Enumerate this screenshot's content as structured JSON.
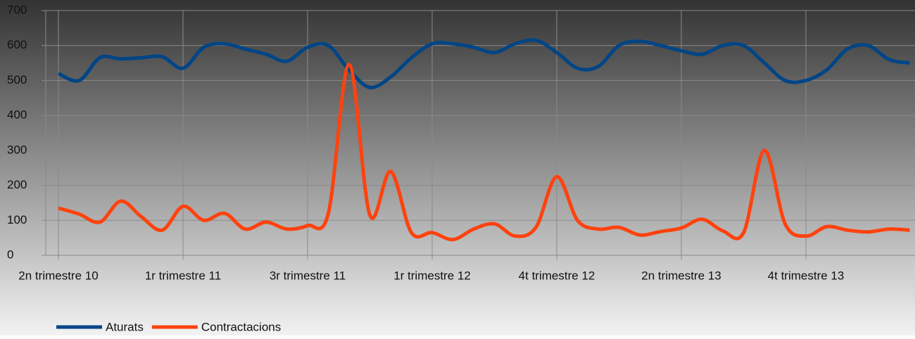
{
  "chart_data": {
    "type": "line",
    "categories": [
      "2n trimestre 10",
      null,
      null,
      null,
      null,
      null,
      "1r trimestre 11",
      null,
      null,
      null,
      null,
      null,
      "3r trimestre 11",
      null,
      null,
      null,
      null,
      null,
      "1r trimestre 12",
      null,
      null,
      null,
      null,
      null,
      "4t trimestre 12",
      null,
      null,
      null,
      null,
      null,
      "2n trimestre 13",
      null,
      null,
      null,
      null,
      null,
      "4t trimestre 13",
      null,
      null,
      null,
      null,
      null
    ],
    "series": [
      {
        "name": "Aturats",
        "color": "#004586",
        "values": [
          520,
          500,
          565,
          562,
          565,
          568,
          535,
          595,
          605,
          590,
          575,
          555,
          595,
          600,
          530,
          480,
          510,
          565,
          605,
          605,
          595,
          580,
          605,
          615,
          580,
          535,
          540,
          600,
          612,
          600,
          585,
          575,
          600,
          600,
          550,
          500,
          500,
          530,
          590,
          600,
          560,
          550
        ]
      },
      {
        "name": "Contractacions",
        "color": "#ff420e",
        "values": [
          135,
          118,
          95,
          155,
          110,
          72,
          140,
          100,
          120,
          75,
          95,
          75,
          85,
          120,
          545,
          115,
          240,
          65,
          65,
          45,
          75,
          90,
          55,
          80,
          225,
          100,
          75,
          80,
          58,
          68,
          78,
          103,
          70,
          65,
          300,
          90,
          55,
          82,
          72,
          67,
          75,
          72
        ]
      }
    ],
    "ylim": [
      0,
      700
    ],
    "yticks": [
      0,
      100,
      200,
      300,
      400,
      500,
      600,
      700
    ],
    "grid": true,
    "legend": "bottom"
  }
}
